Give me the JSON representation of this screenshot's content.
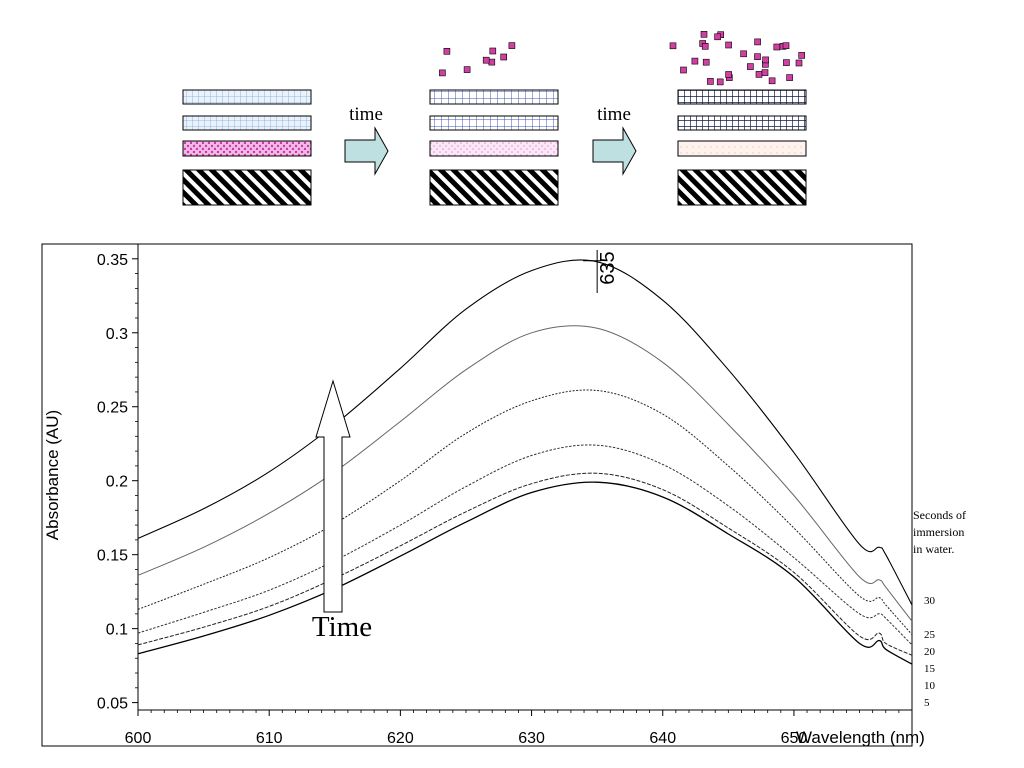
{
  "schematic": {
    "arrow_labels": [
      "time",
      "time"
    ],
    "stages": [
      {
        "particles": 8
      },
      {
        "particles": 30
      }
    ],
    "colors": {
      "arrow_fill": "#bfe0e0",
      "particle": "#d23fa3",
      "top_layer_stage1": "#7aa6d6",
      "middle_layer_stage1": "#d65cc4",
      "bottom_hatch": "#000000"
    }
  },
  "chart": {
    "time_label": "Time",
    "legend_title": "Seconds of immersion in water.",
    "peak_label": "635"
  },
  "chart_data": {
    "type": "line",
    "xlabel": "Wavelength (nm)",
    "ylabel": "Absorbance (AU)",
    "xlim": [
      600,
      659
    ],
    "ylim": [
      0.045,
      0.36
    ],
    "x_ticks": [
      600,
      610,
      620,
      630,
      640,
      650
    ],
    "x_tick_labels": [
      "600",
      "610",
      "620",
      "630",
      "640",
      "650"
    ],
    "y_ticks": [
      0.05,
      0.1,
      0.15,
      0.2,
      0.25,
      0.3,
      0.35
    ],
    "y_tick_labels": [
      "0.05",
      "0.1",
      "0.15",
      "0.2",
      "0.25",
      "0.3",
      "0.35"
    ],
    "peak_wavelength": 635,
    "x": [
      600,
      605,
      610,
      615,
      620,
      625,
      630,
      635,
      640,
      645,
      650,
      655,
      656.5,
      657,
      659
    ],
    "series": [
      {
        "name": "30",
        "values": [
          0.161,
          0.181,
          0.206,
          0.238,
          0.276,
          0.316,
          0.342,
          0.348,
          0.322,
          0.275,
          0.219,
          0.157,
          0.155,
          0.15,
          0.116
        ]
      },
      {
        "name": "25",
        "values": [
          0.136,
          0.155,
          0.178,
          0.206,
          0.24,
          0.275,
          0.3,
          0.303,
          0.28,
          0.238,
          0.19,
          0.135,
          0.133,
          0.128,
          0.105
        ]
      },
      {
        "name": "20",
        "values": [
          0.113,
          0.13,
          0.148,
          0.171,
          0.2,
          0.232,
          0.254,
          0.261,
          0.245,
          0.21,
          0.168,
          0.122,
          0.121,
          0.116,
          0.096
        ]
      },
      {
        "name": "15",
        "values": [
          0.097,
          0.111,
          0.126,
          0.146,
          0.17,
          0.196,
          0.217,
          0.224,
          0.211,
          0.183,
          0.148,
          0.11,
          0.11,
          0.107,
          0.089
        ]
      },
      {
        "name": "10",
        "values": [
          0.089,
          0.101,
          0.115,
          0.134,
          0.156,
          0.179,
          0.198,
          0.205,
          0.194,
          0.168,
          0.138,
          0.095,
          0.097,
          0.09,
          0.082
        ]
      },
      {
        "name": "5",
        "values": [
          0.083,
          0.095,
          0.109,
          0.127,
          0.149,
          0.172,
          0.192,
          0.199,
          0.189,
          0.164,
          0.135,
          0.09,
          0.092,
          0.086,
          0.076
        ]
      }
    ]
  }
}
